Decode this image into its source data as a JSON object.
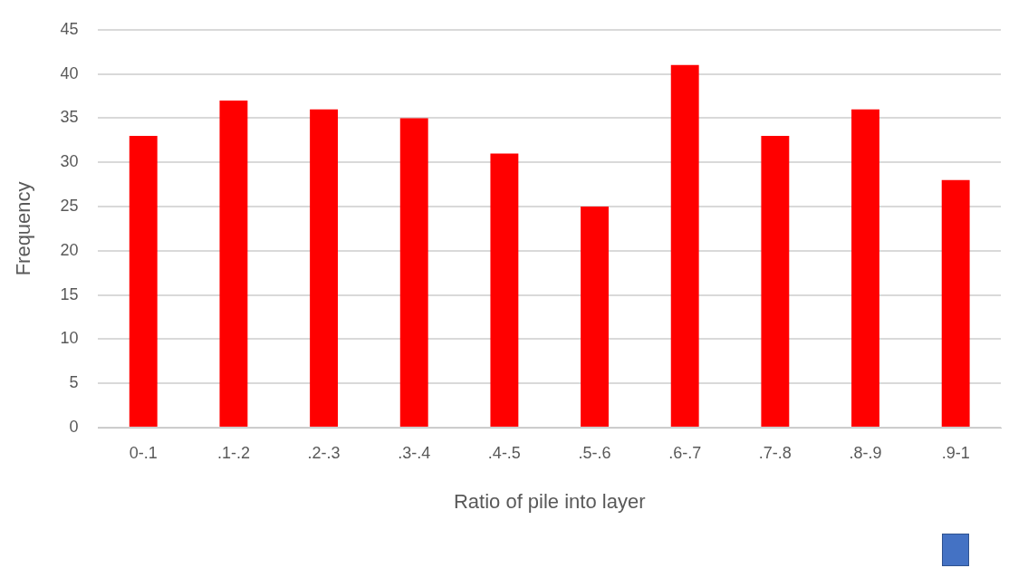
{
  "chart_data": {
    "type": "bar",
    "xlabel": "Ratio of pile into layer",
    "ylabel": "Frequency",
    "categories": [
      "0-.1",
      ".1-.2",
      ".2-.3",
      ".3-.4",
      ".4-.5",
      ".5-.6",
      ".6-.7",
      ".7-.8",
      ".8-.9",
      ".9-1"
    ],
    "values": [
      33,
      37,
      36,
      35,
      31,
      25,
      41,
      33,
      36,
      28
    ],
    "color": "#ff0000",
    "ylim": [
      0,
      45
    ],
    "yticks": [
      0,
      5,
      10,
      15,
      20,
      25,
      30,
      35,
      40,
      45
    ],
    "grid": "y",
    "legend": false
  }
}
